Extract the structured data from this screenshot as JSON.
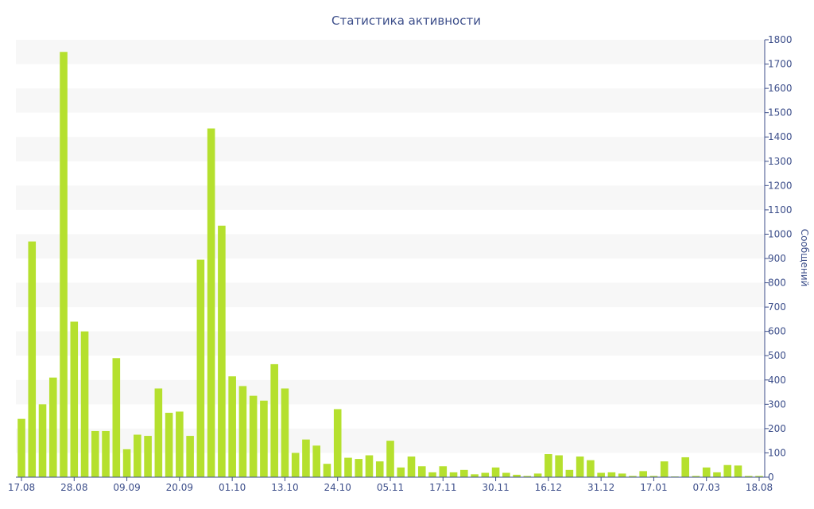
{
  "chart_data": {
    "type": "bar",
    "title": "Статистика активности",
    "ylabel": "Сообщений",
    "xlabel": "",
    "ylim": [
      0,
      1800
    ],
    "y_ticks": [
      0,
      100,
      200,
      300,
      400,
      500,
      600,
      700,
      800,
      900,
      1000,
      1100,
      1200,
      1300,
      1400,
      1500,
      1600,
      1700,
      1800
    ],
    "x_tick_labels": [
      "17.08",
      "28.08",
      "09.09",
      "20.09",
      "01.10",
      "13.10",
      "24.10",
      "05.11",
      "17.11",
      "30.11",
      "16.12",
      "31.12",
      "17.01",
      "07.03",
      "18.08"
    ],
    "x_tick_bar_index": [
      0,
      5,
      10,
      15,
      20,
      25,
      30,
      35,
      40,
      45,
      50,
      55,
      60,
      65,
      70
    ],
    "bar_color": "#b5e02e",
    "axis_color": "#3c4e8a",
    "band_color": "#f7f7f7",
    "grid": false,
    "y_axis_side": "right",
    "values": [
      240,
      970,
      300,
      410,
      1750,
      640,
      600,
      190,
      190,
      490,
      115,
      175,
      170,
      365,
      265,
      270,
      170,
      895,
      1435,
      1035,
      415,
      375,
      335,
      315,
      465,
      365,
      100,
      155,
      130,
      55,
      280,
      80,
      75,
      90,
      65,
      150,
      40,
      85,
      45,
      20,
      45,
      20,
      30,
      12,
      18,
      40,
      18,
      10,
      5,
      15,
      95,
      90,
      30,
      85,
      70,
      18,
      20,
      15,
      5,
      25,
      5,
      65,
      3,
      82,
      5,
      40,
      20,
      50,
      48,
      5,
      5
    ]
  }
}
